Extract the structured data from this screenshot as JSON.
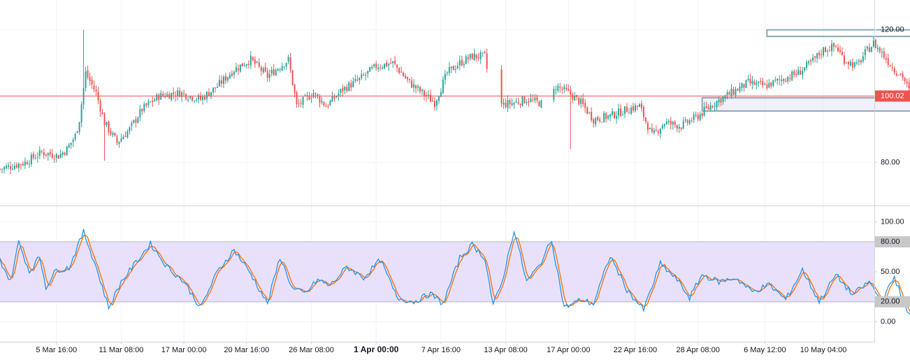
{
  "colors": {
    "up": "#26a69a",
    "down": "#ef5350",
    "priceLine": "#ef5350",
    "priceTagBg": "#ef5350",
    "boxStroke": "#86a9b3",
    "rangeFill": "#e9e1fb",
    "rangeBorder": "#b2b5be",
    "stochK": "#2196f3",
    "stochD": "#ff6d00",
    "grid": "#f0f3fa",
    "separator": "#d1d4dc",
    "axisText": "#131722",
    "bandTagBg": "#c8c8c8"
  },
  "chart_data": {
    "type": "candlestick",
    "price_axis": {
      "ticks": [
        "120.00",
        "80.00"
      ],
      "tick_values": [
        120,
        80
      ],
      "ylim": [
        67,
        129
      ]
    },
    "current_price": {
      "label": "100.02",
      "value": 100.02
    },
    "x_axis": {
      "labels": [
        "5 Mar 16:00",
        "11 Mar 08:00",
        "17 Mar 00:00",
        "20 Mar 16:00",
        "26 Mar 08:00",
        "1 Apr 00:00",
        "7 Apr 16:00",
        "13 Apr 08:00",
        "17 Apr 00:00",
        "22 Apr 16:00",
        "28 Apr 08:00",
        "6 May 12:00",
        "10 May 04:00"
      ],
      "bold_label": "1 Apr 00:00"
    },
    "price_anchors": [
      {
        "t": 0,
        "p": 78
      },
      {
        "t": 12,
        "p": 80
      },
      {
        "t": 20,
        "p": 83
      },
      {
        "t": 28,
        "p": 82
      },
      {
        "t": 32,
        "p": 84
      },
      {
        "t": 36,
        "p": 88
      },
      {
        "t": 38,
        "p": 93
      },
      {
        "t": 41,
        "p": 107
      },
      {
        "t": 46,
        "p": 101
      },
      {
        "t": 50,
        "p": 92
      },
      {
        "t": 56,
        "p": 86
      },
      {
        "t": 62,
        "p": 90
      },
      {
        "t": 68,
        "p": 96
      },
      {
        "t": 76,
        "p": 100
      },
      {
        "t": 86,
        "p": 101
      },
      {
        "t": 96,
        "p": 99
      },
      {
        "t": 104,
        "p": 103
      },
      {
        "t": 112,
        "p": 108
      },
      {
        "t": 120,
        "p": 111
      },
      {
        "t": 128,
        "p": 106
      },
      {
        "t": 134,
        "p": 109
      },
      {
        "t": 138,
        "p": 111
      },
      {
        "t": 142,
        "p": 97
      },
      {
        "t": 150,
        "p": 101
      },
      {
        "t": 156,
        "p": 97
      },
      {
        "t": 164,
        "p": 102
      },
      {
        "t": 172,
        "p": 105
      },
      {
        "t": 180,
        "p": 109
      },
      {
        "t": 188,
        "p": 110
      },
      {
        "t": 196,
        "p": 104
      },
      {
        "t": 202,
        "p": 101
      },
      {
        "t": 208,
        "p": 98
      },
      {
        "t": 214,
        "p": 107
      },
      {
        "t": 220,
        "p": 110
      },
      {
        "t": 226,
        "p": 112
      },
      {
        "t": 232,
        "p": 112
      },
      {
        "t": 236,
        "p": 97
      },
      {
        "t": 246,
        "p": 98
      },
      {
        "t": 252,
        "p": 99
      },
      {
        "t": 258,
        "p": 98
      },
      {
        "t": 262,
        "p": 97
      },
      {
        "t": 266,
        "p": 103
      },
      {
        "t": 272,
        "p": 101
      },
      {
        "t": 278,
        "p": 98
      },
      {
        "t": 284,
        "p": 93
      },
      {
        "t": 292,
        "p": 94
      },
      {
        "t": 300,
        "p": 96
      },
      {
        "t": 306,
        "p": 97
      },
      {
        "t": 312,
        "p": 88
      },
      {
        "t": 318,
        "p": 92
      },
      {
        "t": 326,
        "p": 91
      },
      {
        "t": 334,
        "p": 94
      },
      {
        "t": 342,
        "p": 98
      },
      {
        "t": 350,
        "p": 101
      },
      {
        "t": 358,
        "p": 104
      },
      {
        "t": 366,
        "p": 103
      },
      {
        "t": 374,
        "p": 105
      },
      {
        "t": 382,
        "p": 107
      },
      {
        "t": 388,
        "p": 110
      },
      {
        "t": 394,
        "p": 114
      },
      {
        "t": 400,
        "p": 115
      },
      {
        "t": 404,
        "p": 111
      },
      {
        "t": 410,
        "p": 109
      },
      {
        "t": 414,
        "p": 113
      },
      {
        "t": 418,
        "p": 116
      },
      {
        "t": 422,
        "p": 113
      },
      {
        "t": 428,
        "p": 108
      },
      {
        "t": 432,
        "p": 106
      },
      {
        "t": 436,
        "p": 100
      }
    ],
    "gaps": [
      [
        233,
        240
      ],
      [
        259,
        265
      ]
    ],
    "trend_box_top": {
      "from_t": 367,
      "to_t": 464,
      "low": 118,
      "high": 120
    },
    "support_box": {
      "from_t": 336,
      "to_t": 474,
      "low": 95.5,
      "high": 99.5
    },
    "arrow": {
      "t": 441,
      "from": 98,
      "to": 119.5
    },
    "stoch_axis": {
      "ticks": [
        "100.00",
        "50.00",
        "0.00"
      ],
      "tick_values": [
        100,
        50,
        0
      ],
      "ylim": [
        -20,
        115
      ]
    },
    "stoch_bands": {
      "upper": 80,
      "lower": 20,
      "upper_label": "80.00",
      "lower_label": "20.00"
    },
    "stoch_anchors": [
      {
        "t": 0,
        "k": 62
      },
      {
        "t": 5,
        "k": 40
      },
      {
        "t": 9,
        "k": 80
      },
      {
        "t": 14,
        "k": 50
      },
      {
        "t": 19,
        "k": 65
      },
      {
        "t": 22,
        "k": 35
      },
      {
        "t": 27,
        "k": 52
      },
      {
        "t": 33,
        "k": 54
      },
      {
        "t": 40,
        "k": 90
      },
      {
        "t": 46,
        "k": 55
      },
      {
        "t": 52,
        "k": 14
      },
      {
        "t": 58,
        "k": 40
      },
      {
        "t": 66,
        "k": 62
      },
      {
        "t": 72,
        "k": 78
      },
      {
        "t": 80,
        "k": 55
      },
      {
        "t": 88,
        "k": 40
      },
      {
        "t": 96,
        "k": 14
      },
      {
        "t": 104,
        "k": 50
      },
      {
        "t": 112,
        "k": 72
      },
      {
        "t": 120,
        "k": 48
      },
      {
        "t": 128,
        "k": 18
      },
      {
        "t": 134,
        "k": 65
      },
      {
        "t": 140,
        "k": 33
      },
      {
        "t": 146,
        "k": 28
      },
      {
        "t": 152,
        "k": 42
      },
      {
        "t": 158,
        "k": 36
      },
      {
        "t": 166,
        "k": 55
      },
      {
        "t": 174,
        "k": 44
      },
      {
        "t": 182,
        "k": 62
      },
      {
        "t": 190,
        "k": 24
      },
      {
        "t": 198,
        "k": 20
      },
      {
        "t": 206,
        "k": 28
      },
      {
        "t": 212,
        "k": 18
      },
      {
        "t": 220,
        "k": 64
      },
      {
        "t": 226,
        "k": 77
      },
      {
        "t": 232,
        "k": 64
      },
      {
        "t": 236,
        "k": 16
      },
      {
        "t": 240,
        "k": 38
      },
      {
        "t": 246,
        "k": 92
      },
      {
        "t": 252,
        "k": 40
      },
      {
        "t": 258,
        "k": 56
      },
      {
        "t": 264,
        "k": 82
      },
      {
        "t": 270,
        "k": 14
      },
      {
        "t": 278,
        "k": 22
      },
      {
        "t": 284,
        "k": 18
      },
      {
        "t": 292,
        "k": 66
      },
      {
        "t": 300,
        "k": 32
      },
      {
        "t": 308,
        "k": 12
      },
      {
        "t": 316,
        "k": 58
      },
      {
        "t": 324,
        "k": 42
      },
      {
        "t": 330,
        "k": 24
      },
      {
        "t": 336,
        "k": 47
      },
      {
        "t": 344,
        "k": 40
      },
      {
        "t": 352,
        "k": 44
      },
      {
        "t": 360,
        "k": 30
      },
      {
        "t": 368,
        "k": 37
      },
      {
        "t": 376,
        "k": 22
      },
      {
        "t": 384,
        "k": 52
      },
      {
        "t": 392,
        "k": 20
      },
      {
        "t": 400,
        "k": 47
      },
      {
        "t": 408,
        "k": 27
      },
      {
        "t": 416,
        "k": 40
      },
      {
        "t": 422,
        "k": 20
      },
      {
        "t": 428,
        "k": 45
      },
      {
        "t": 434,
        "k": 10
      },
      {
        "t": 438,
        "k": 2
      },
      {
        "t": 444,
        "k": 1
      }
    ]
  }
}
